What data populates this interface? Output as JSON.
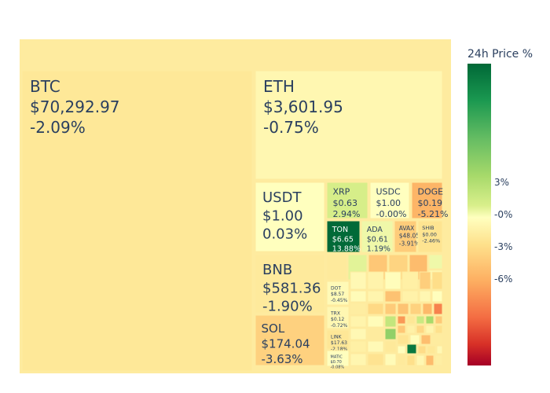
{
  "colorbar": {
    "title": "24h Price %",
    "ticks": [
      {
        "label": "3%",
        "value": 3
      },
      {
        "label": "-0%",
        "value": 0
      },
      {
        "label": "-3%",
        "value": -3
      },
      {
        "label": "-6%",
        "value": -6
      }
    ],
    "range": [
      -14,
      14
    ]
  },
  "chart_data": {
    "type": "treemap",
    "title": "",
    "color_metric": "24h Price %",
    "items": [
      {
        "symbol": "BTC",
        "price": "$70,292.97",
        "change": "-2.09%",
        "pct": -2.09
      },
      {
        "symbol": "ETH",
        "price": "$3,601.95",
        "change": "-0.75%",
        "pct": -0.75
      },
      {
        "symbol": "USDT",
        "price": "$1.00",
        "change": "0.03%",
        "pct": 0.03
      },
      {
        "symbol": "BNB",
        "price": "$581.36",
        "change": "-1.90%",
        "pct": -1.9
      },
      {
        "symbol": "SOL",
        "price": "$174.04",
        "change": "-3.63%",
        "pct": -3.63
      },
      {
        "symbol": "XRP",
        "price": "$0.63",
        "change": "2.94%",
        "pct": 2.94
      },
      {
        "symbol": "USDC",
        "price": "$1.00",
        "change": "-0.00%",
        "pct": -0.0
      },
      {
        "symbol": "DOGE",
        "price": "$0.19",
        "change": "-5.21%",
        "pct": -5.21
      },
      {
        "symbol": "TON",
        "price": "$6.65",
        "change": "13.88%",
        "pct": 13.88
      },
      {
        "symbol": "ADA",
        "price": "$0.61",
        "change": "1.19%",
        "pct": 1.19
      },
      {
        "symbol": "AVAX",
        "price": "$48.05",
        "change": "-3.91%",
        "pct": -3.91
      },
      {
        "symbol": "SHIB",
        "price": "$0.00",
        "change": "-2.46%",
        "pct": -2.46
      },
      {
        "symbol": "DOT",
        "price": "$8.57",
        "change": "-0.45%",
        "pct": -0.45
      },
      {
        "symbol": "TRX",
        "price": "$0.12",
        "change": "-0.72%",
        "pct": -0.72
      },
      {
        "symbol": "LINK",
        "price": "$17.63",
        "change": "-2.18%",
        "pct": -2.18
      },
      {
        "symbol": "MATIC",
        "price": "$0.70",
        "change": "-0.08%",
        "pct": -0.08
      }
    ]
  }
}
